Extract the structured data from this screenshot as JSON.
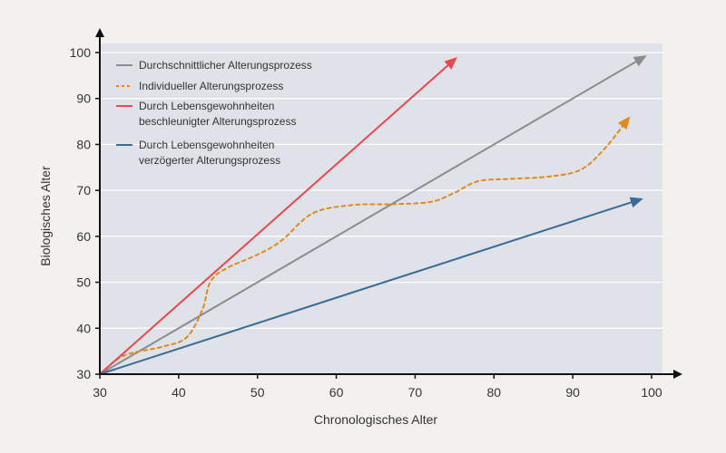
{
  "chart_data": {
    "type": "line",
    "xlabel": "Chronologisches Alter",
    "ylabel": "Biologisches Alter",
    "xlim": [
      30,
      100
    ],
    "ylim": [
      30,
      100
    ],
    "x_ticks": [
      30,
      40,
      50,
      60,
      70,
      80,
      90,
      100
    ],
    "y_ticks": [
      30,
      40,
      50,
      60,
      70,
      80,
      90,
      100
    ],
    "grid": "horizontal",
    "legend_position": "top-left",
    "background_color": "#dfe2e8",
    "series": [
      {
        "name": "Durchschnittlicher Alterungsprozess",
        "color": "#8c8c8c",
        "style": "solid",
        "arrow": true,
        "points": [
          [
            30,
            30
          ],
          [
            99,
            99
          ]
        ]
      },
      {
        "name": "Individueller Alterungsprozess",
        "color": "#e08a1e",
        "style": "dashed",
        "arrow": true,
        "points": [
          [
            30,
            30
          ],
          [
            33,
            34
          ],
          [
            38,
            36
          ],
          [
            41,
            38
          ],
          [
            43,
            44
          ],
          [
            44,
            50
          ],
          [
            46,
            53
          ],
          [
            50,
            56
          ],
          [
            53,
            59
          ],
          [
            57,
            65
          ],
          [
            62,
            66.8
          ],
          [
            67,
            67
          ],
          [
            72,
            67.5
          ],
          [
            75,
            69.5
          ],
          [
            78,
            72
          ],
          [
            82,
            72.5
          ],
          [
            87,
            73
          ],
          [
            91,
            74.5
          ],
          [
            94,
            79
          ],
          [
            97,
            85.5
          ]
        ]
      },
      {
        "name": "Durch Lebensgewohnheiten beschleunigter Alterungsprozess",
        "name_lines": [
          "Durch Lebensgewohnheiten",
          "beschleunigter Alterungsprozess"
        ],
        "color": "#e8484e",
        "style": "solid",
        "arrow": true,
        "points": [
          [
            30,
            30
          ],
          [
            75,
            98.5
          ]
        ]
      },
      {
        "name": "Durch Lebensgewohnheiten verzögerter Alterungsprozess",
        "name_lines": [
          "Durch Lebensgewohnheiten",
          "verzögerter Alterungsprozess"
        ],
        "color": "#3a6b94",
        "style": "solid",
        "arrow": true,
        "points": [
          [
            30,
            30
          ],
          [
            98.5,
            68
          ]
        ]
      }
    ]
  }
}
